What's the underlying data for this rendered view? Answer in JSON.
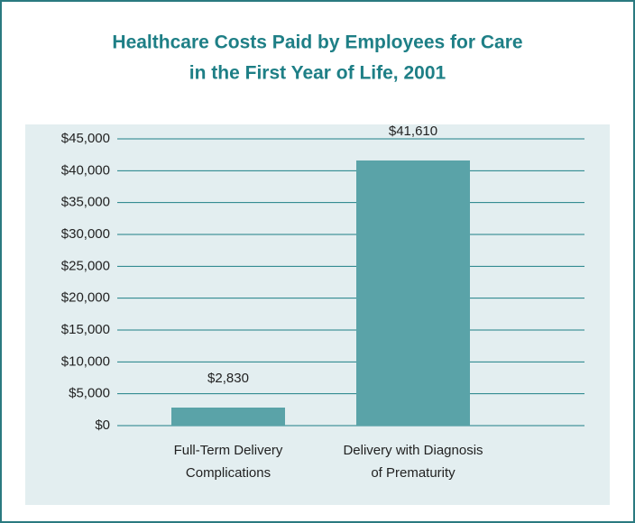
{
  "chart_data": {
    "type": "bar",
    "title": [
      "Healthcare Costs Paid by Employees for Care",
      "in the First Year of Life, 2001"
    ],
    "categories": [
      [
        "Full-Term Delivery",
        "Complications"
      ],
      [
        "Delivery with Diagnosis",
        "of Prematurity"
      ]
    ],
    "values": [
      2830,
      41610
    ],
    "value_labels": [
      "$2,830",
      "$41,610"
    ],
    "color": "#5aa3a8",
    "ylim": [
      0,
      45000
    ],
    "yticks": [
      {
        "value": 0,
        "label": "$0"
      },
      {
        "value": 5000,
        "label": "$5,000"
      },
      {
        "value": 10000,
        "label": "$10,000"
      },
      {
        "value": 15000,
        "label": "$15,000"
      },
      {
        "value": 20000,
        "label": "$20,000"
      },
      {
        "value": 25000,
        "label": "$25,000"
      },
      {
        "value": 30000,
        "label": "$30,000"
      },
      {
        "value": 35000,
        "label": "$35,000"
      },
      {
        "value": 40000,
        "label": "$40,000"
      },
      {
        "value": 45000,
        "label": "$45,000"
      }
    ],
    "grid": true
  }
}
